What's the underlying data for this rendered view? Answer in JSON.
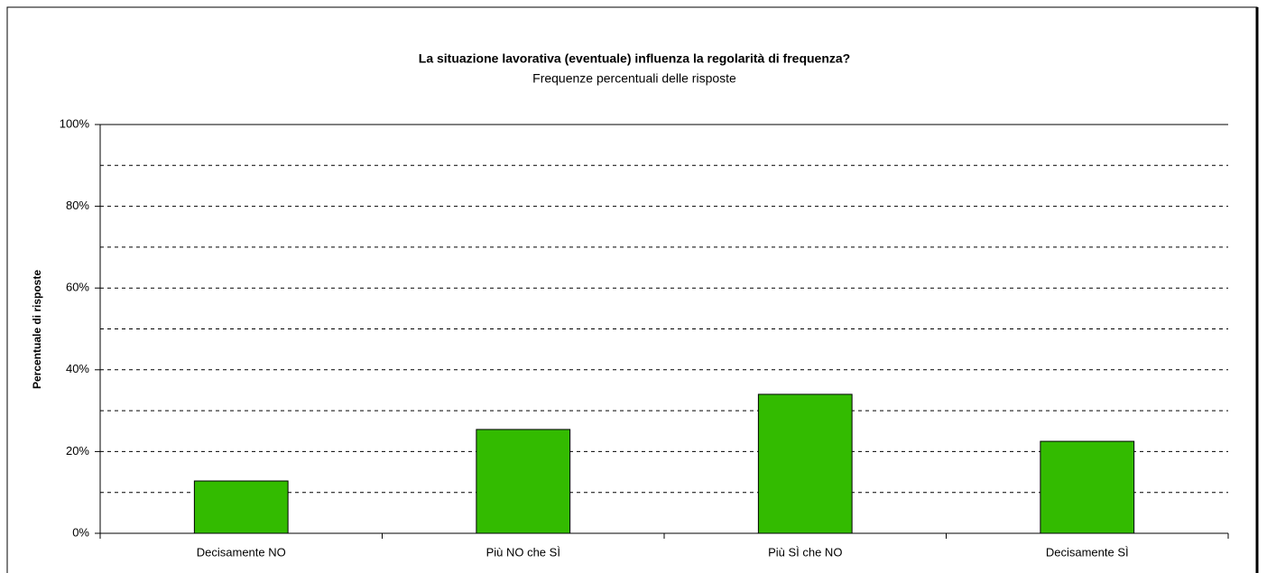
{
  "chart_data": {
    "type": "bar",
    "title": "La situazione lavorativa (eventuale) influenza la regolarità di frequenza?",
    "subtitle": "Frequenze percentuali delle risposte",
    "y_label": "Percentuale di risposte",
    "categories": [
      "Decisamente NO",
      "Più NO che SÌ",
      "Più SÌ che NO",
      "Decisamente SÌ"
    ],
    "values": [
      12.8,
      25.4,
      34.0,
      22.5
    ],
    "color": "#33bb00",
    "ylim": [
      0,
      100
    ],
    "yticks": [
      {
        "value": 0,
        "label": "0%"
      },
      {
        "value": 20,
        "label": "20%"
      },
      {
        "value": 40,
        "label": "40%"
      },
      {
        "value": 60,
        "label": "60%"
      },
      {
        "value": 80,
        "label": "80%"
      },
      {
        "value": 100,
        "label": "100%"
      }
    ],
    "minor_yticks": [
      10,
      30,
      50,
      70,
      90
    ],
    "grid": true
  }
}
